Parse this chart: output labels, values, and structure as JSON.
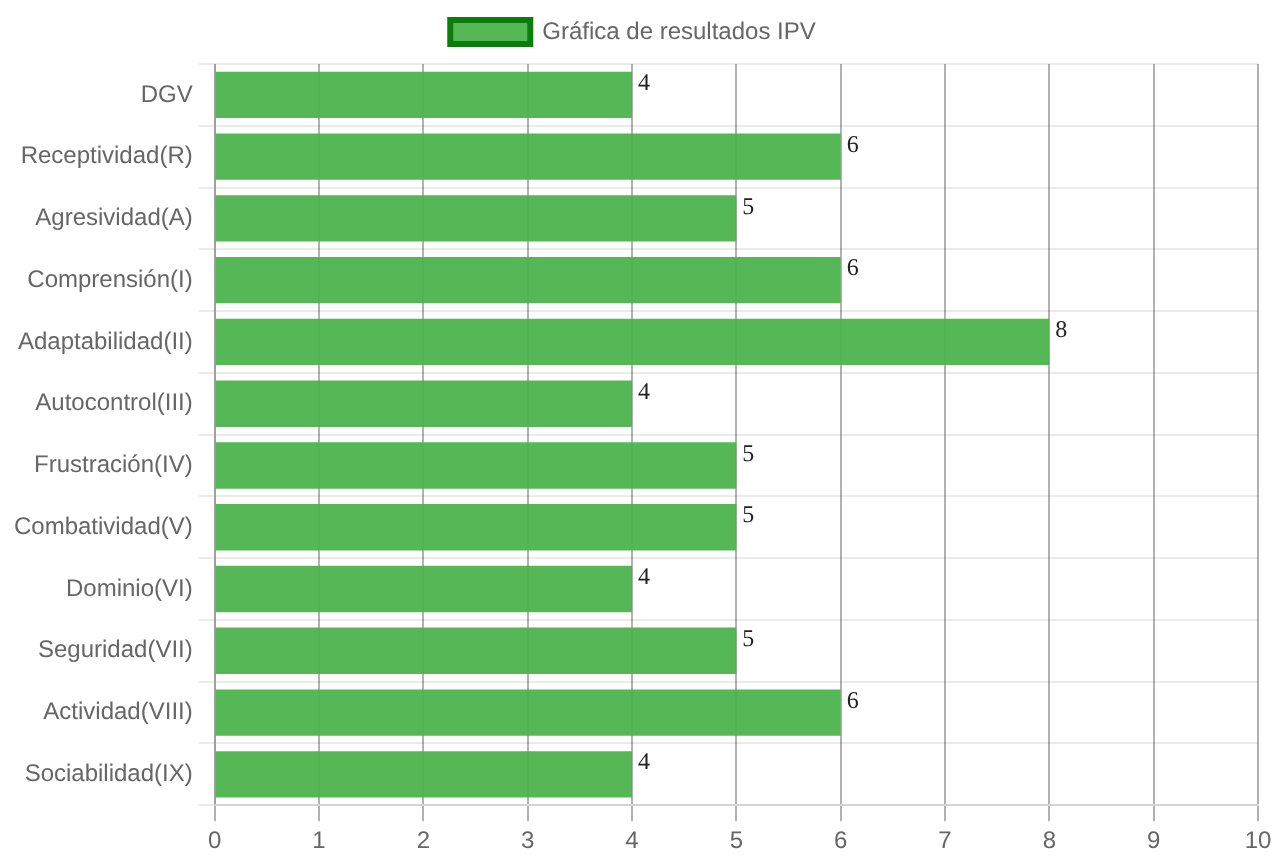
{
  "chart_data": {
    "type": "bar",
    "orientation": "horizontal",
    "categories": [
      "DGV",
      "Receptividad(R)",
      "Agresividad(A)",
      "Comprensión(I)",
      "Adaptabilidad(II)",
      "Autocontrol(III)",
      "Frustración(IV)",
      "Combatividad(V)",
      "Dominio(VI)",
      "Seguridad(VII)",
      "Actividad(VIII)",
      "Sociabilidad(IX)"
    ],
    "series": [
      {
        "name": "Gráfica de resultados IPV",
        "color": "#4cb34c",
        "values": [
          4,
          6,
          5,
          6,
          8,
          4,
          5,
          5,
          4,
          5,
          6,
          4
        ]
      }
    ],
    "xlim": [
      0,
      10
    ],
    "xticks": [
      0,
      1,
      2,
      3,
      4,
      5,
      6,
      7,
      8,
      9,
      10
    ],
    "grid": true,
    "legend": "top",
    "data_labels": true
  }
}
